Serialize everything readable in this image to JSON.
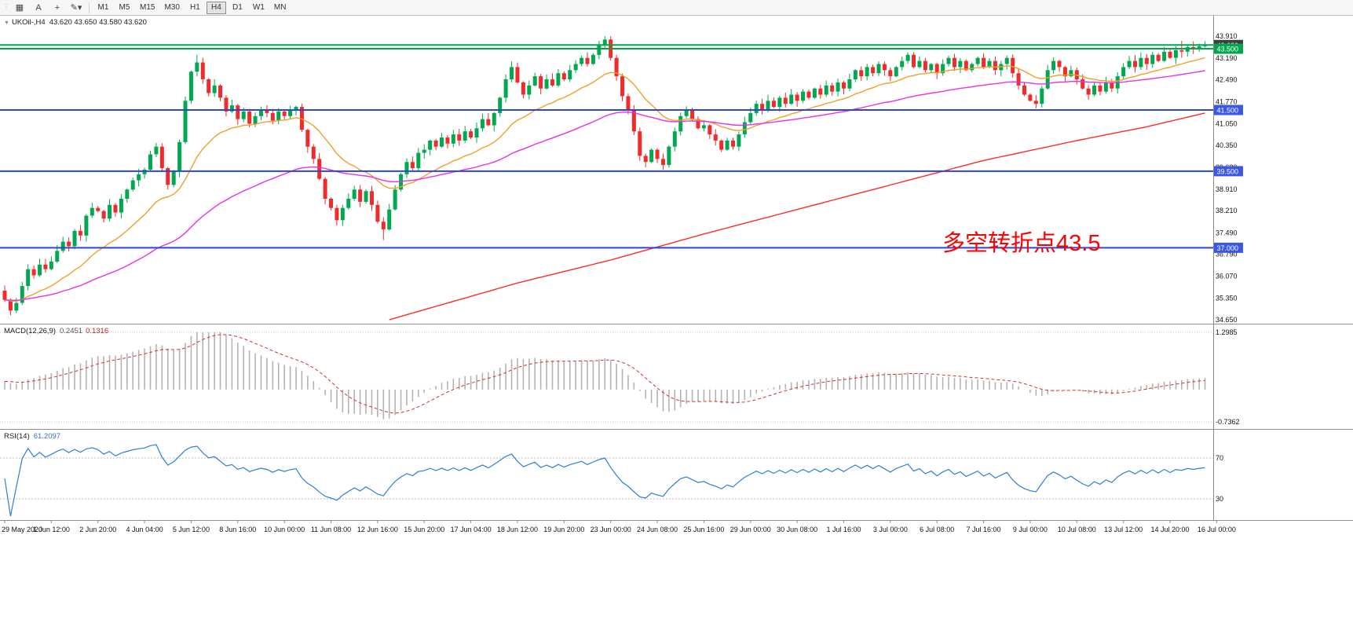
{
  "toolbar": {
    "grip_glyph": "⋮",
    "icons": [
      {
        "name": "chart-type-icon",
        "glyph": "▦"
      },
      {
        "name": "cursor-icon",
        "glyph": "A"
      },
      {
        "name": "crosshair-icon",
        "glyph": "+"
      },
      {
        "name": "draw-tools-icon",
        "glyph": "✎▾"
      }
    ],
    "timeframes": [
      "M1",
      "M5",
      "M15",
      "M30",
      "H1",
      "H4",
      "D1",
      "W1",
      "MN"
    ],
    "active_timeframe": "H4"
  },
  "main_chart": {
    "collapse_glyph": "▼",
    "title": "UKOil-,H4",
    "ohlc": "43.620 43.650 43.580 43.620",
    "annotation": {
      "text": "多空转折点43.5",
      "color": "#ff0000"
    },
    "price_ticks": [
      "43.910",
      "43.190",
      "42.490",
      "41.770",
      "41.050",
      "40.350",
      "39.630",
      "38.910",
      "38.210",
      "37.490",
      "36.790",
      "36.070",
      "35.350",
      "34.650"
    ],
    "hlines": [
      {
        "price": 43.62,
        "color": "#00a650"
      },
      {
        "price": 43.5,
        "color": "#00a650"
      },
      {
        "price": 41.5,
        "color": "#2e48c8"
      },
      {
        "price": 39.5,
        "color": "#2e48c8"
      },
      {
        "price": 37.0,
        "color": "#2e48c8"
      }
    ],
    "axis_tags": [
      {
        "label": "43.620",
        "price": 43.62,
        "bg": "#3e3e3e"
      },
      {
        "label": "43.500",
        "price": 43.5,
        "bg": "#00a650"
      },
      {
        "label": "41.500",
        "price": 41.5,
        "bg": "#3a57e8"
      },
      {
        "label": "39.500",
        "price": 39.5,
        "bg": "#3a57e8"
      },
      {
        "label": "37.000",
        "price": 37.0,
        "bg": "#3a57e8"
      }
    ]
  },
  "macd": {
    "label": "MACD(12,26,9)",
    "value_main": "0.2451",
    "value_signal": "0.1316",
    "levels": [
      "1.2985",
      "-0.7362"
    ]
  },
  "rsi": {
    "label": "RSI(14)",
    "value": "61.2097",
    "levels": [
      "70",
      "30"
    ]
  },
  "time_axis": {
    "labels": [
      "29 May 2020",
      "1 Jun 12:00",
      "2 Jun 20:00",
      "4 Jun 04:00",
      "5 Jun 12:00",
      "8 Jun 16:00",
      "10 Jun 00:00",
      "11 Jun 08:00",
      "12 Jun 16:00",
      "15 Jun 20:00",
      "17 Jun 04:00",
      "18 Jun 12:00",
      "19 Jun 20:00",
      "23 Jun 00:00",
      "24 Jun 08:00",
      "25 Jun 16:00",
      "29 Jun 00:00",
      "30 Jun 08:00",
      "1 Jul 16:00",
      "3 Jul 00:00",
      "6 Jul 08:00",
      "7 Jul 16:00",
      "9 Jul 00:00",
      "10 Jul 08:00",
      "13 Jul 12:00",
      "14 Jul 20:00",
      "16 Jul 00:00"
    ],
    "bars_per_label": 8
  },
  "chart_data": {
    "type": "candlestick",
    "symbol": "UKOil-",
    "timeframe": "H4",
    "ohlc_current": {
      "open": 43.62,
      "high": 43.65,
      "low": 43.58,
      "close": 43.62
    },
    "ylim": [
      34.65,
      43.91
    ],
    "first_open": 35.6,
    "up_color": "#00a94f",
    "down_color": "#ef2b2b",
    "bars_per_label": 8,
    "closes": [
      35.3,
      34.95,
      35.2,
      35.75,
      36.3,
      36.1,
      36.45,
      36.3,
      36.55,
      36.9,
      37.2,
      37.05,
      37.55,
      37.4,
      38.05,
      38.3,
      38.2,
      37.95,
      38.4,
      38.15,
      38.6,
      38.9,
      39.2,
      39.4,
      39.55,
      40.05,
      40.3,
      39.6,
      39.05,
      39.5,
      40.45,
      41.8,
      42.75,
      43.05,
      42.5,
      42.05,
      42.3,
      41.9,
      41.45,
      41.65,
      41.2,
      41.45,
      41.05,
      41.3,
      41.5,
      41.4,
      41.15,
      41.45,
      41.3,
      41.5,
      41.6,
      40.85,
      40.3,
      39.9,
      39.25,
      38.6,
      38.3,
      37.9,
      38.3,
      38.6,
      38.9,
      38.5,
      38.85,
      38.4,
      37.85,
      37.6,
      38.25,
      38.9,
      39.4,
      39.8,
      39.6,
      40.1,
      40.2,
      40.5,
      40.3,
      40.6,
      40.4,
      40.7,
      40.5,
      40.8,
      40.6,
      40.9,
      41.2,
      41.0,
      41.4,
      41.9,
      42.5,
      42.9,
      42.4,
      42.0,
      42.3,
      42.6,
      42.2,
      42.5,
      42.3,
      42.7,
      42.5,
      42.8,
      43.0,
      43.2,
      43.0,
      43.3,
      43.6,
      43.8,
      43.2,
      42.6,
      41.95,
      41.5,
      40.8,
      40.0,
      39.8,
      40.2,
      39.9,
      39.7,
      40.3,
      40.8,
      41.3,
      41.5,
      41.2,
      40.9,
      41.0,
      40.7,
      40.5,
      40.2,
      40.5,
      40.3,
      40.7,
      41.1,
      41.4,
      41.7,
      41.5,
      41.8,
      41.6,
      41.9,
      41.7,
      42.0,
      41.8,
      42.1,
      41.9,
      42.2,
      42.0,
      42.3,
      42.1,
      42.4,
      42.2,
      42.5,
      42.8,
      42.6,
      42.9,
      42.7,
      43.0,
      42.8,
      42.6,
      42.9,
      43.1,
      43.3,
      42.9,
      43.1,
      42.8,
      43.0,
      42.7,
      43.0,
      43.2,
      42.9,
      43.1,
      42.8,
      43.0,
      43.2,
      42.9,
      43.1,
      42.8,
      43.0,
      43.2,
      42.7,
      42.3,
      42.0,
      41.8,
      41.7,
      42.2,
      42.8,
      43.1,
      42.9,
      42.6,
      42.8,
      42.5,
      42.2,
      42.0,
      42.3,
      42.1,
      42.4,
      42.2,
      42.6,
      42.9,
      43.1,
      42.9,
      43.2,
      43.0,
      43.3,
      43.1,
      43.4,
      43.2,
      43.45,
      43.4,
      43.55,
      43.5,
      43.58,
      43.62
    ],
    "overrides": [
      {
        "i": 103,
        "h": 43.91
      },
      {
        "i": 33,
        "h": 43.3
      },
      {
        "i": 202,
        "h": 43.76
      },
      {
        "i": 1,
        "l": 34.8
      },
      {
        "i": 65,
        "l": 37.25
      },
      {
        "i": 113,
        "l": 39.55
      },
      {
        "i": 177,
        "l": 41.55
      }
    ],
    "overlays": [
      {
        "name": "ma-fast",
        "color": "#f0a028",
        "type": "ema",
        "period": 18
      },
      {
        "name": "ma-mid",
        "color": "#e632e6",
        "type": "ema",
        "period": 55
      },
      {
        "name": "ma-slow",
        "color": "#ff2a2a",
        "type": "anchors",
        "points": [
          [
            66,
            34.65
          ],
          [
            88,
            35.85
          ],
          [
            104,
            36.6
          ],
          [
            120,
            37.45
          ],
          [
            136,
            38.25
          ],
          [
            152,
            39.05
          ],
          [
            168,
            39.85
          ],
          [
            184,
            40.5
          ],
          [
            196,
            40.95
          ],
          [
            206,
            41.4
          ]
        ]
      }
    ],
    "indicators": {
      "macd": {
        "fast": 12,
        "slow": 26,
        "signal": 9,
        "current_main": 0.2451,
        "current_signal": 0.1316,
        "scale_max": 1.2985,
        "scale_min": -0.7362,
        "histogram_color": "#b3b3b3",
        "signal_color": "#d23030"
      },
      "rsi": {
        "period": 14,
        "current": 61.2097,
        "levels": [
          70,
          30
        ],
        "line_color": "#2f7ed8"
      }
    }
  }
}
